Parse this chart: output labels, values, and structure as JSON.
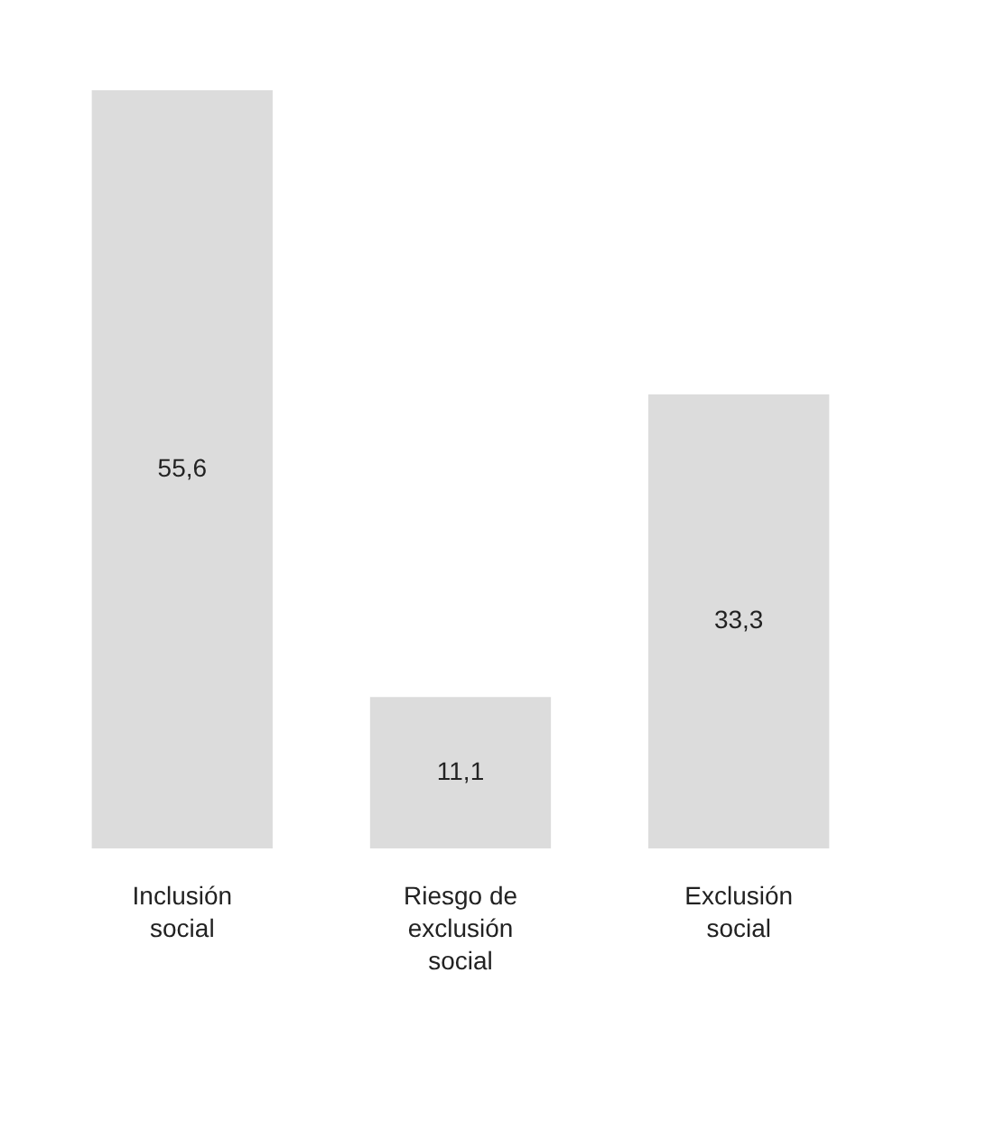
{
  "chart_data": {
    "type": "bar",
    "categories": [
      "Inclusión social",
      "Riesgo de exclusión social",
      "Exclusión social"
    ],
    "values": [
      55.6,
      11.1,
      33.3
    ],
    "value_labels": [
      "55,6",
      "11,1",
      "33,3"
    ],
    "color": "#dcdcdc"
  }
}
